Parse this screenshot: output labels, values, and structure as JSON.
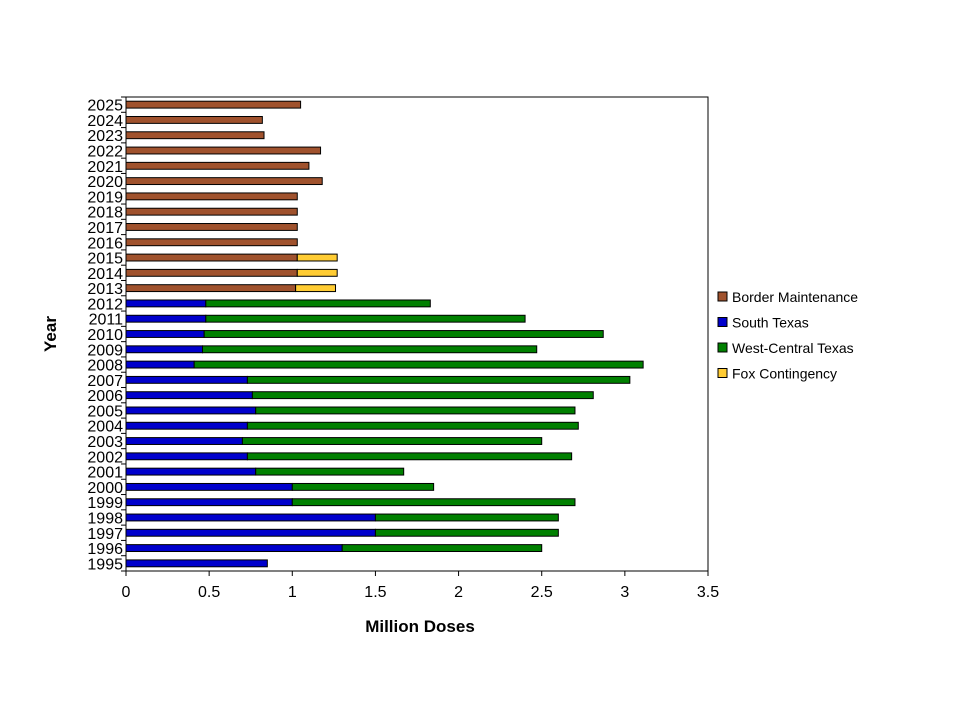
{
  "chart_data": {
    "type": "bar",
    "orientation": "horizontal",
    "stacked": true,
    "title": "",
    "xlabel": "Million Doses",
    "ylabel": "Year",
    "xlim": [
      0,
      3.5
    ],
    "xticks": [
      "0",
      "0.5",
      "1",
      "1.5",
      "2",
      "2.5",
      "3",
      "3.5"
    ],
    "grid": false,
    "legend_position": "right",
    "categories": [
      "1995",
      "1996",
      "1997",
      "1998",
      "1999",
      "2000",
      "2001",
      "2002",
      "2003",
      "2004",
      "2005",
      "2006",
      "2007",
      "2008",
      "2009",
      "2010",
      "2011",
      "2012",
      "2013",
      "2014",
      "2015",
      "2016",
      "2017",
      "2018",
      "2019",
      "2020",
      "2021",
      "2022",
      "2023",
      "2024",
      "2025"
    ],
    "series": [
      {
        "name": "Border Maintenance",
        "color": "#A0522D",
        "values": [
          0,
          0,
          0,
          0,
          0,
          0,
          0,
          0,
          0,
          0,
          0,
          0,
          0,
          0,
          0,
          0,
          0,
          0,
          1.02,
          1.03,
          1.03,
          1.03,
          1.03,
          1.03,
          1.03,
          1.18,
          1.1,
          1.17,
          0.83,
          0.82,
          1.05
        ]
      },
      {
        "name": "South Texas",
        "color": "#0000CC",
        "values": [
          0.85,
          1.3,
          1.5,
          1.5,
          1.0,
          1.0,
          0.78,
          0.73,
          0.7,
          0.73,
          0.78,
          0.76,
          0.73,
          0.41,
          0.46,
          0.47,
          0.48,
          0.48,
          0,
          0,
          0,
          0,
          0,
          0,
          0,
          0,
          0,
          0,
          0,
          0,
          0
        ]
      },
      {
        "name": "West-Central Texas",
        "color": "#008000",
        "values": [
          0,
          1.2,
          1.1,
          1.1,
          1.7,
          0.85,
          0.89,
          1.95,
          1.8,
          1.99,
          1.92,
          2.05,
          2.3,
          2.7,
          2.01,
          2.4,
          1.92,
          1.35,
          0,
          0,
          0,
          0,
          0,
          0,
          0,
          0,
          0,
          0,
          0,
          0,
          0
        ]
      },
      {
        "name": "Fox Contingency",
        "color": "#FFCC33",
        "values": [
          0,
          0,
          0,
          0,
          0,
          0,
          0,
          0,
          0,
          0,
          0,
          0,
          0,
          0,
          0,
          0,
          0,
          0,
          0.24,
          0.24,
          0.24,
          0,
          0,
          0,
          0,
          0,
          0,
          0,
          0,
          0,
          0
        ]
      }
    ]
  }
}
